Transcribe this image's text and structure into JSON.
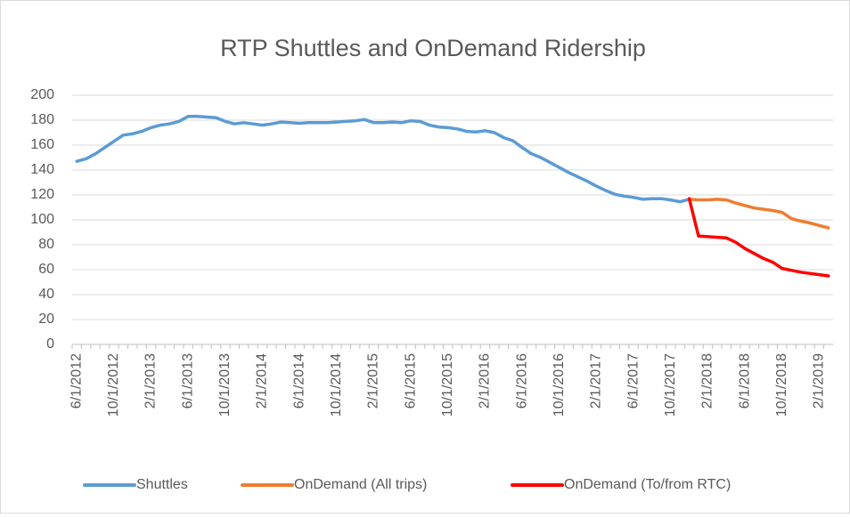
{
  "chart_data": {
    "type": "line",
    "title": "RTP Shuttles and OnDemand Ridership",
    "categories": [
      "6/1/2012",
      null,
      null,
      null,
      "10/1/2012",
      null,
      null,
      null,
      "2/1/2013",
      null,
      null,
      null,
      "6/1/2013",
      null,
      null,
      null,
      "10/1/2013",
      null,
      null,
      null,
      "2/1/2014",
      null,
      null,
      null,
      "6/1/2014",
      null,
      null,
      null,
      "10/1/2014",
      null,
      null,
      null,
      "2/1/2015",
      null,
      null,
      null,
      "6/1/2015",
      null,
      null,
      null,
      "10/1/2015",
      null,
      null,
      null,
      "2/1/2016",
      null,
      null,
      null,
      "6/1/2016",
      null,
      null,
      null,
      "10/1/2016",
      null,
      null,
      null,
      "2/1/2017",
      null,
      null,
      null,
      "6/1/2017",
      null,
      null,
      null,
      "10/1/2017",
      null,
      null,
      null,
      "2/1/2018",
      null,
      null,
      null,
      "6/1/2018",
      null,
      null,
      null,
      "10/1/2018",
      null,
      null,
      null,
      "2/1/2019",
      null
    ],
    "series": [
      {
        "name": "Shuttles",
        "color": "#5b9bd5",
        "values": [
          147,
          149,
          153,
          158,
          163,
          168,
          169,
          171,
          174,
          176,
          177,
          179,
          183,
          183,
          182.5,
          182,
          179,
          177,
          178,
          177,
          176,
          177,
          178.5,
          178,
          177.5,
          178,
          178,
          178,
          178.5,
          179,
          179.5,
          180.5,
          178,
          178,
          178.5,
          178,
          179.5,
          179,
          176,
          174.5,
          174,
          173,
          171,
          170.5,
          171.5,
          170,
          166,
          163.5,
          158,
          153,
          150,
          146,
          142,
          138,
          134.5,
          131,
          127,
          123.5,
          120.5,
          119,
          118,
          116.5,
          117,
          117,
          116,
          114.5,
          116.5,
          null,
          null,
          null,
          null,
          null,
          null,
          null,
          null,
          null,
          null,
          null,
          null,
          null,
          null,
          null
        ]
      },
      {
        "name": "OnDemand (All trips)",
        "color": "#ed7d31",
        "values": [
          null,
          null,
          null,
          null,
          null,
          null,
          null,
          null,
          null,
          null,
          null,
          null,
          null,
          null,
          null,
          null,
          null,
          null,
          null,
          null,
          null,
          null,
          null,
          null,
          null,
          null,
          null,
          null,
          null,
          null,
          null,
          null,
          null,
          null,
          null,
          null,
          null,
          null,
          null,
          null,
          null,
          null,
          null,
          null,
          null,
          null,
          null,
          null,
          null,
          null,
          null,
          null,
          null,
          null,
          null,
          null,
          null,
          null,
          null,
          null,
          null,
          null,
          null,
          null,
          null,
          null,
          116.5,
          116,
          116,
          116.5,
          116,
          113.5,
          111.5,
          109.5,
          108.5,
          107.5,
          106,
          101,
          99,
          97.5,
          95.5,
          93.5
        ]
      },
      {
        "name": "OnDemand (To/from RTC)",
        "color": "#ff0000",
        "values": [
          null,
          null,
          null,
          null,
          null,
          null,
          null,
          null,
          null,
          null,
          null,
          null,
          null,
          null,
          null,
          null,
          null,
          null,
          null,
          null,
          null,
          null,
          null,
          null,
          null,
          null,
          null,
          null,
          null,
          null,
          null,
          null,
          null,
          null,
          null,
          null,
          null,
          null,
          null,
          null,
          null,
          null,
          null,
          null,
          null,
          null,
          null,
          null,
          null,
          null,
          null,
          null,
          null,
          null,
          null,
          null,
          null,
          null,
          null,
          null,
          null,
          null,
          null,
          null,
          null,
          null,
          117,
          87,
          86.5,
          86,
          85.5,
          82,
          77,
          73,
          69,
          66,
          61,
          59.5,
          58,
          57,
          56,
          55
        ]
      }
    ],
    "ylim": [
      0,
      200
    ],
    "yticks": [
      0,
      20,
      40,
      60,
      80,
      100,
      120,
      140,
      160,
      180,
      200
    ],
    "grid": true,
    "legend": "bottom"
  }
}
